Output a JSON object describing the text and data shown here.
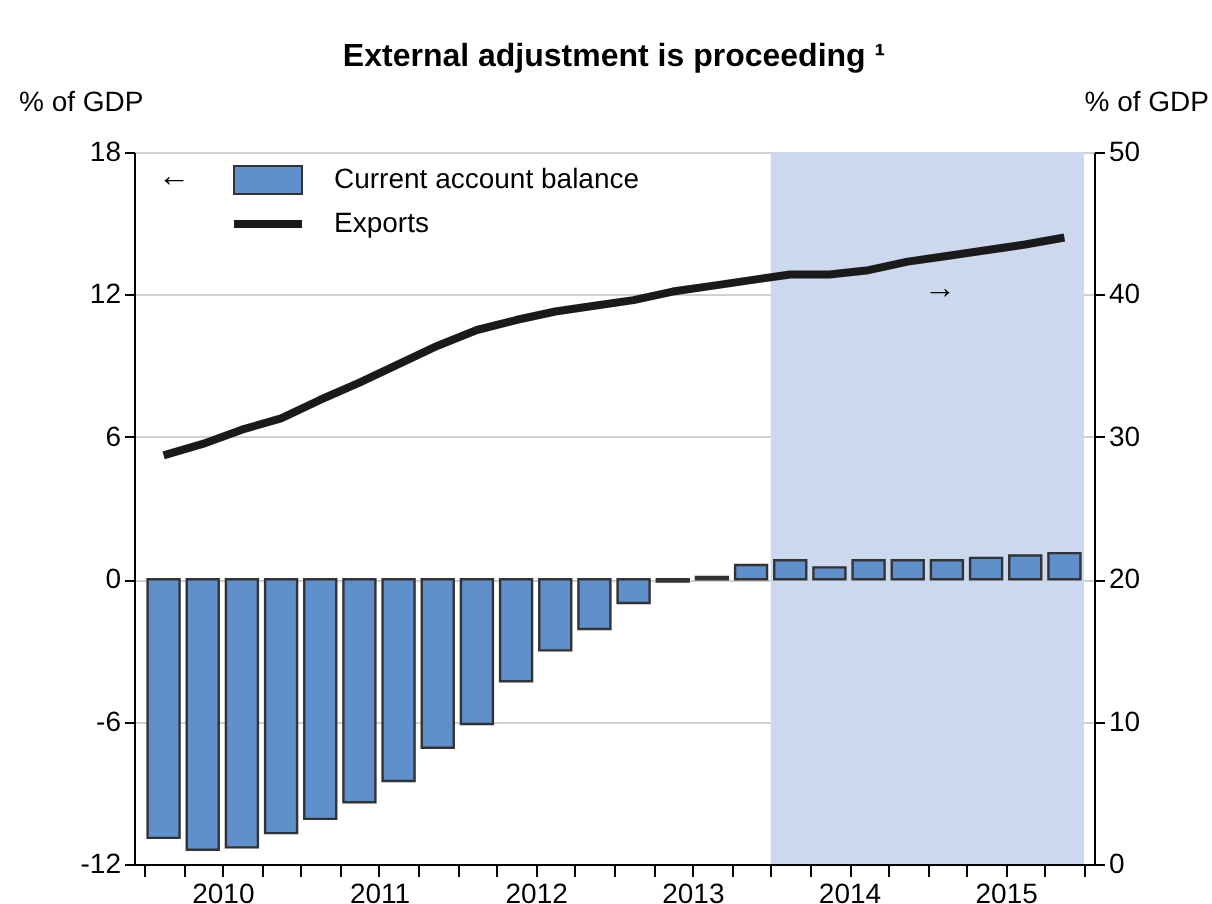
{
  "chart_data": {
    "type": "bar",
    "title": "External adjustment is proceeding ¹",
    "ylabel": "% of GDP",
    "y2label": "% of GDP",
    "x": [
      2010.125,
      2010.375,
      2010.625,
      2010.875,
      2011.125,
      2011.375,
      2011.625,
      2011.875,
      2012.125,
      2012.375,
      2012.625,
      2012.875,
      2013.125,
      2013.375,
      2013.625,
      2013.875,
      2014.125,
      2014.375,
      2014.625,
      2014.875,
      2015.125,
      2015.375,
      2015.625,
      2015.875
    ],
    "series": [
      {
        "name": "Current account balance",
        "color": "#6090cc",
        "values": [
          -10.9,
          -11.4,
          -11.3,
          -10.7,
          -10.1,
          -9.4,
          -8.5,
          -7.1,
          -6.1,
          -4.3,
          -3.0,
          -2.1,
          -1.0,
          -0.1,
          0.1,
          0.6,
          0.8,
          0.5,
          0.8,
          0.8,
          0.8,
          0.9,
          1.0,
          1.1
        ]
      },
      {
        "name": "Exports",
        "type": "line",
        "axis": "y2",
        "color": "#1a1a1a",
        "values": [
          28.7,
          29.5,
          30.5,
          31.3,
          32.6,
          33.8,
          35.1,
          36.4,
          37.5,
          38.2,
          38.8,
          39.2,
          39.6,
          40.2,
          40.6,
          41.0,
          41.4,
          41.4,
          41.7,
          42.3,
          42.7,
          43.1,
          43.5,
          44.0
        ]
      }
    ],
    "xlim": [
      2010,
      2016
    ],
    "xticks": [
      {
        "value": 2010,
        "label": null
      },
      {
        "value": 2010.25,
        "label": null
      },
      {
        "value": 2010.5,
        "label": "2010"
      },
      {
        "value": 2010.75,
        "label": null
      },
      {
        "value": 2011,
        "label": null
      },
      {
        "value": 2011.25,
        "label": null
      },
      {
        "value": 2011.5,
        "label": "2011"
      },
      {
        "value": 2011.75,
        "label": null
      },
      {
        "value": 2012,
        "label": null
      },
      {
        "value": 2012.25,
        "label": null
      },
      {
        "value": 2012.5,
        "label": "2012"
      },
      {
        "value": 2012.75,
        "label": null
      },
      {
        "value": 2013,
        "label": null
      },
      {
        "value": 2013.25,
        "label": null
      },
      {
        "value": 2013.5,
        "label": "2013"
      },
      {
        "value": 2013.75,
        "label": null
      },
      {
        "value": 2014,
        "label": null
      },
      {
        "value": 2014.25,
        "label": null
      },
      {
        "value": 2014.5,
        "label": "2014"
      },
      {
        "value": 2014.75,
        "label": null
      },
      {
        "value": 2015,
        "label": null
      },
      {
        "value": 2015.25,
        "label": null
      },
      {
        "value": 2015.5,
        "label": "2015"
      },
      {
        "value": 2015.75,
        "label": null
      },
      {
        "value": 2016,
        "label": null
      }
    ],
    "ylim": [
      -12,
      18
    ],
    "yticks": [
      -12,
      -6,
      0,
      6,
      12,
      18
    ],
    "y2lim": [
      0,
      50
    ],
    "y2ticks": [
      0,
      10,
      20,
      30,
      40,
      50
    ],
    "bands": [
      {
        "axis": "x",
        "from": 2014,
        "to": 2016,
        "color": "#ccd8ee"
      }
    ],
    "annotations": [
      "←",
      "→"
    ],
    "grid": "y",
    "legend": "top left"
  }
}
